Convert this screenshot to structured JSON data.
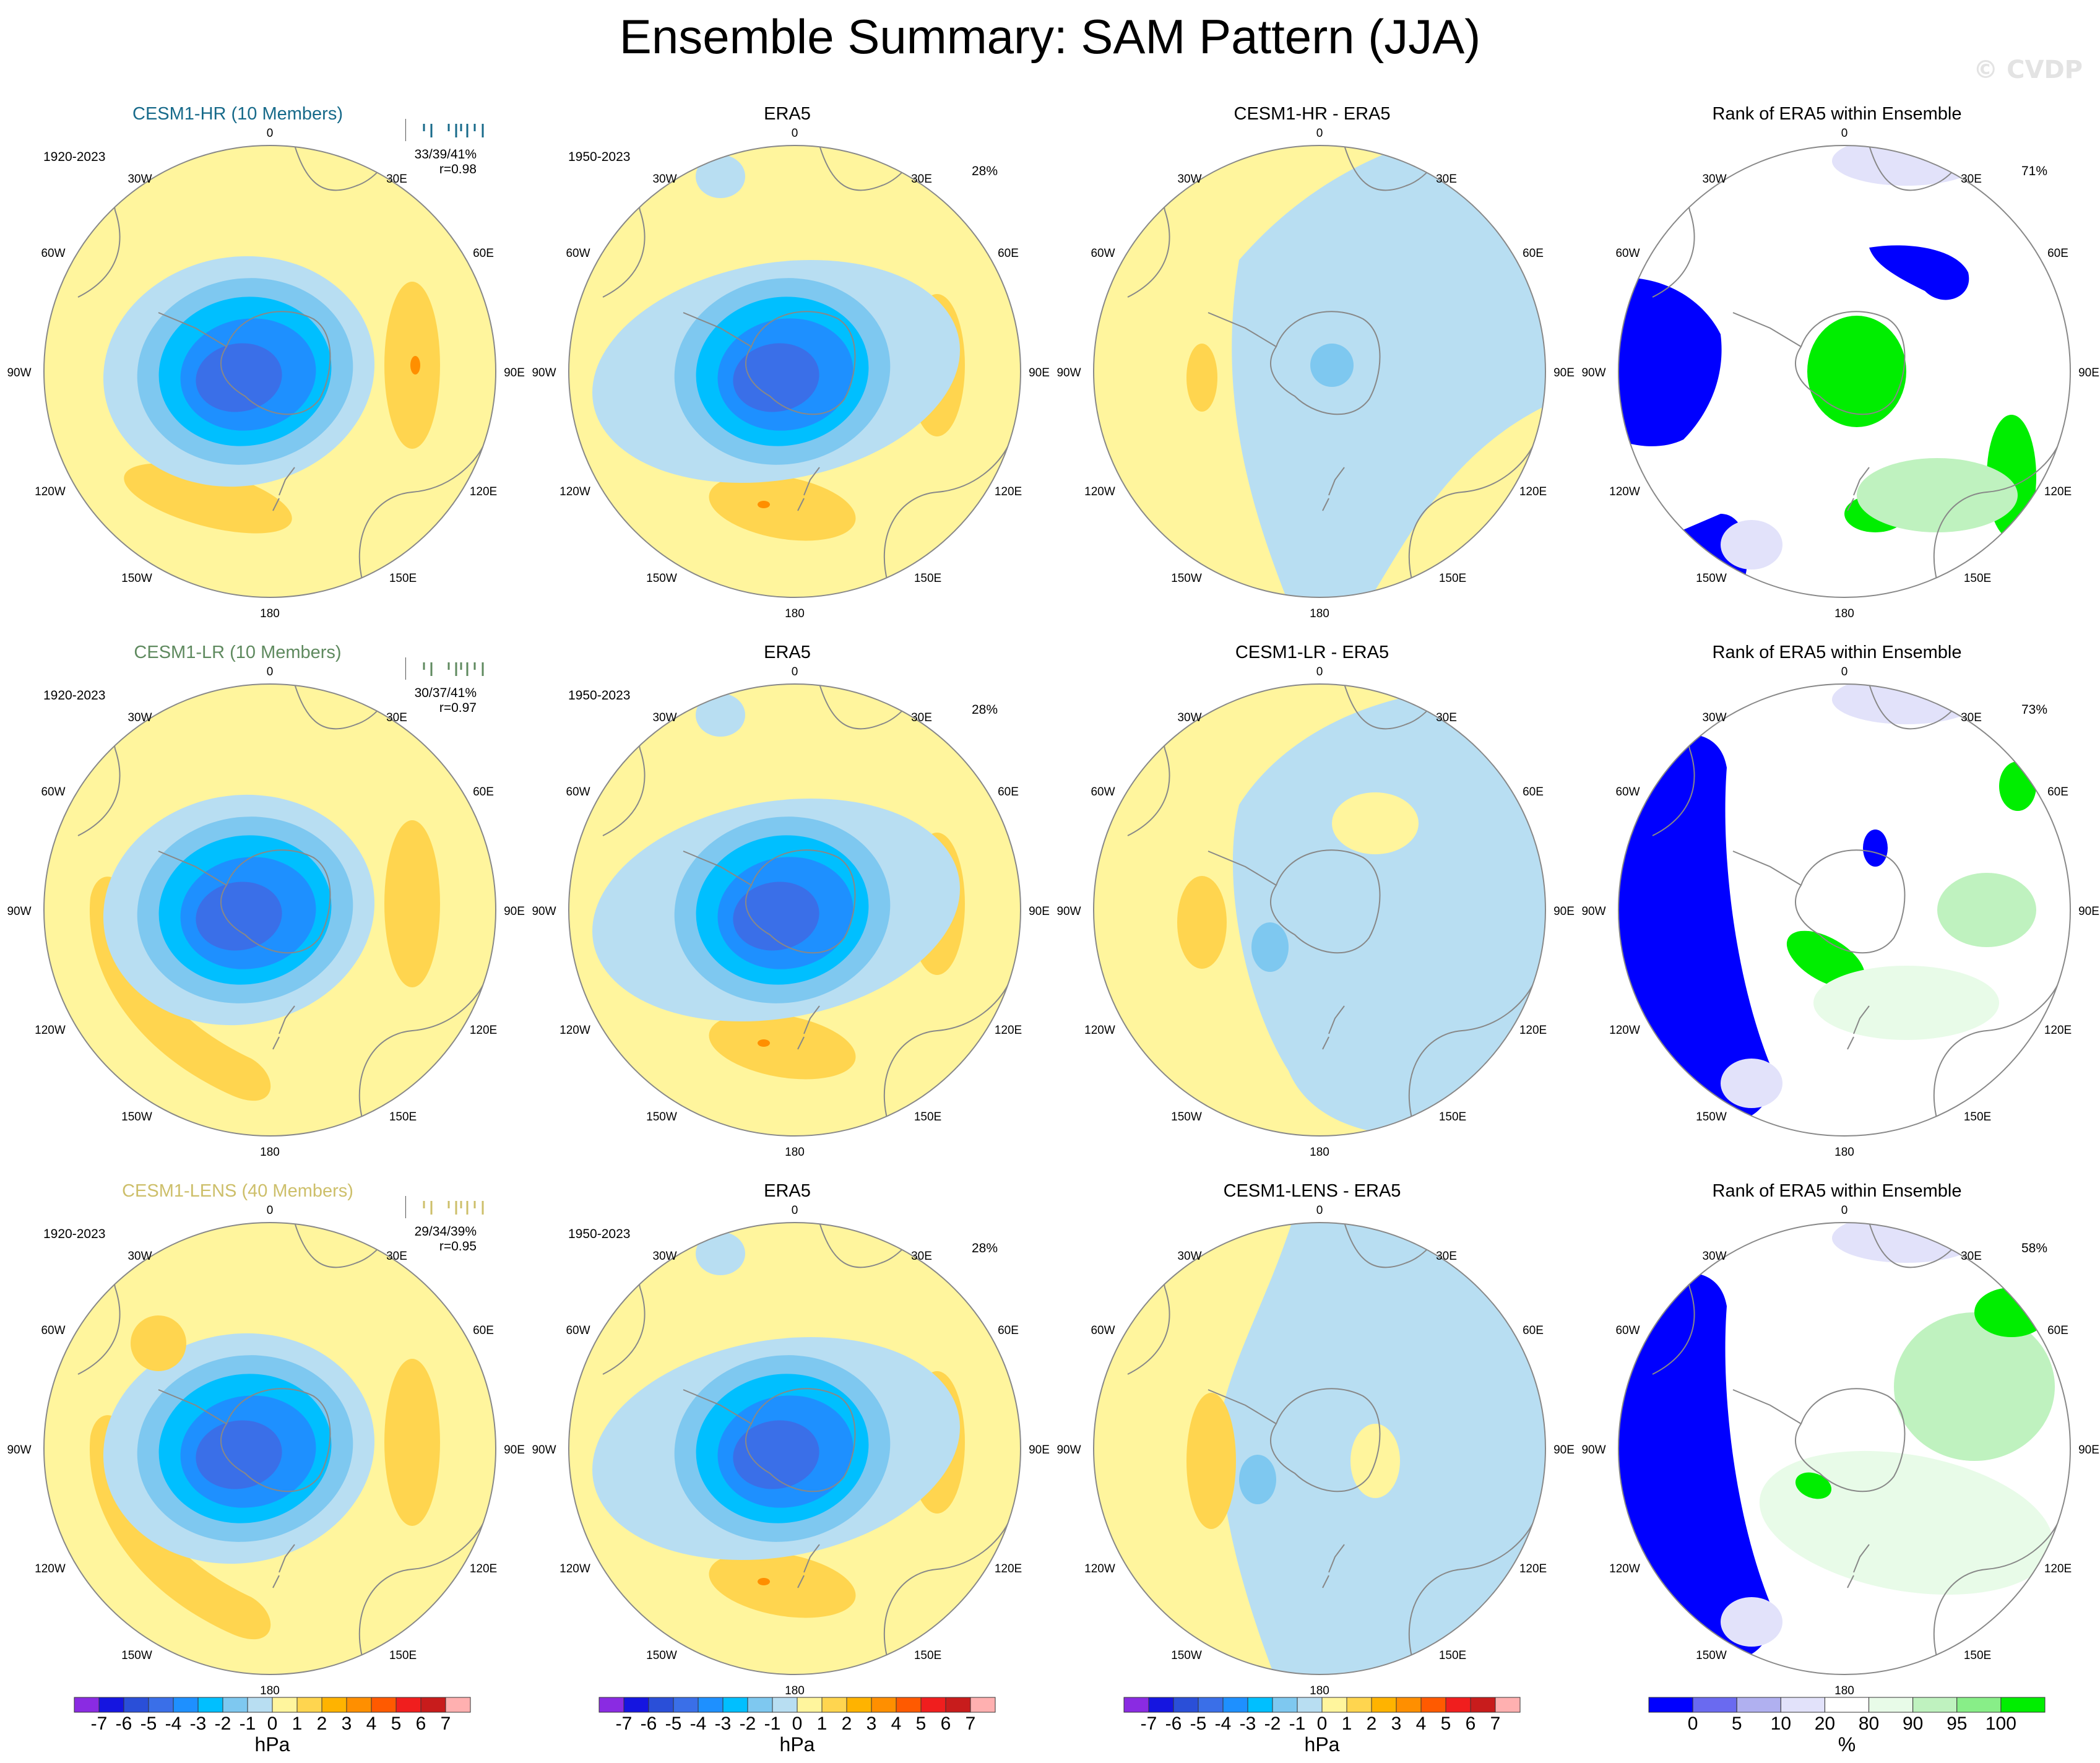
{
  "title": "Ensemble Summary: SAM Pattern (JJA)",
  "watermark": "© CVDP",
  "map_labels": {
    "top": "0",
    "bottom": "180",
    "ul1": "30W",
    "ur1": "30E",
    "ul2": "60W",
    "ur2": "60E",
    "l": "90W",
    "r": "90E",
    "ll2": "120W",
    "lr2": "120E",
    "ll1": "150W",
    "lr1": "150E"
  },
  "rows": [
    {
      "model": {
        "title": "CESM1-HR (10 Members)",
        "title_color": "#176a8a",
        "period": "1920-2023",
        "stats": "33/39/41%",
        "corr": "r=0.98"
      },
      "obs": {
        "title": "ERA5",
        "period": "1950-2023",
        "pct": "28%"
      },
      "diff": {
        "title": "CESM1-HR - ERA5"
      },
      "rank": {
        "title": "Rank of ERA5 within Ensemble",
        "pct": "71%"
      }
    },
    {
      "model": {
        "title": "CESM1-LR (10 Members)",
        "title_color": "#5f8a5f",
        "period": "1920-2023",
        "stats": "30/37/41%",
        "corr": "r=0.97"
      },
      "obs": {
        "title": "ERA5",
        "period": "1950-2023",
        "pct": "28%"
      },
      "diff": {
        "title": "CESM1-LR - ERA5"
      },
      "rank": {
        "title": "Rank of ERA5 within Ensemble",
        "pct": "73%"
      }
    },
    {
      "model": {
        "title": "CESM1-LENS (40 Members)",
        "title_color": "#cdbf6a",
        "period": "1920-2023",
        "stats": "29/34/39%",
        "corr": "r=0.95"
      },
      "obs": {
        "title": "ERA5",
        "period": "1950-2023",
        "pct": "28%"
      },
      "diff": {
        "title": "CESM1-LENS - ERA5"
      },
      "rank": {
        "title": "Rank of ERA5 within Ensemble",
        "pct": "58%"
      }
    }
  ],
  "colorbar_hpa": {
    "unit": "hPa",
    "labels": [
      "-7",
      "-6",
      "-5",
      "-4",
      "-3",
      "-2",
      "-1",
      "0",
      "1",
      "2",
      "3",
      "4",
      "5",
      "6",
      "7"
    ],
    "colors": [
      "#8a2be2",
      "#1515e0",
      "#2a4fd8",
      "#3a6fe8",
      "#1e90ff",
      "#00bfff",
      "#7ec8f0",
      "#b8def2",
      "#fff59d",
      "#ffd54f",
      "#ffb300",
      "#ff8f00",
      "#ff5a00",
      "#f01e1e",
      "#c81c1c",
      "#ffb0b0"
    ]
  },
  "colorbar_pct": {
    "unit": "%",
    "labels": [
      "0",
      "5",
      "10",
      "20",
      "80",
      "90",
      "95",
      "100"
    ],
    "colors": [
      "#0000ff",
      "#6a6af0",
      "#b0b0f0",
      "#e2e2fa",
      "#ffffff",
      "#e8fbe8",
      "#bff2bf",
      "#88ee88",
      "#00ee00"
    ]
  },
  "map_colors": {
    "yellow": "#fff59d",
    "orange1": "#ffd54f",
    "orange2": "#ffb300",
    "orange3": "#ff8f00",
    "blue1": "#b8def2",
    "blue2": "#7ec8f0",
    "blue3": "#00bfff",
    "blue4": "#1e90ff",
    "blue5": "#3a6fe8",
    "blue6": "#2a4fd8",
    "rank_blue": "#0000ff",
    "rank_lav": "#e2e2fa",
    "rank_green": "#00ee00",
    "rank_lgreen": "#bff2bf",
    "rank_vlgreen": "#e8fbe8"
  }
}
